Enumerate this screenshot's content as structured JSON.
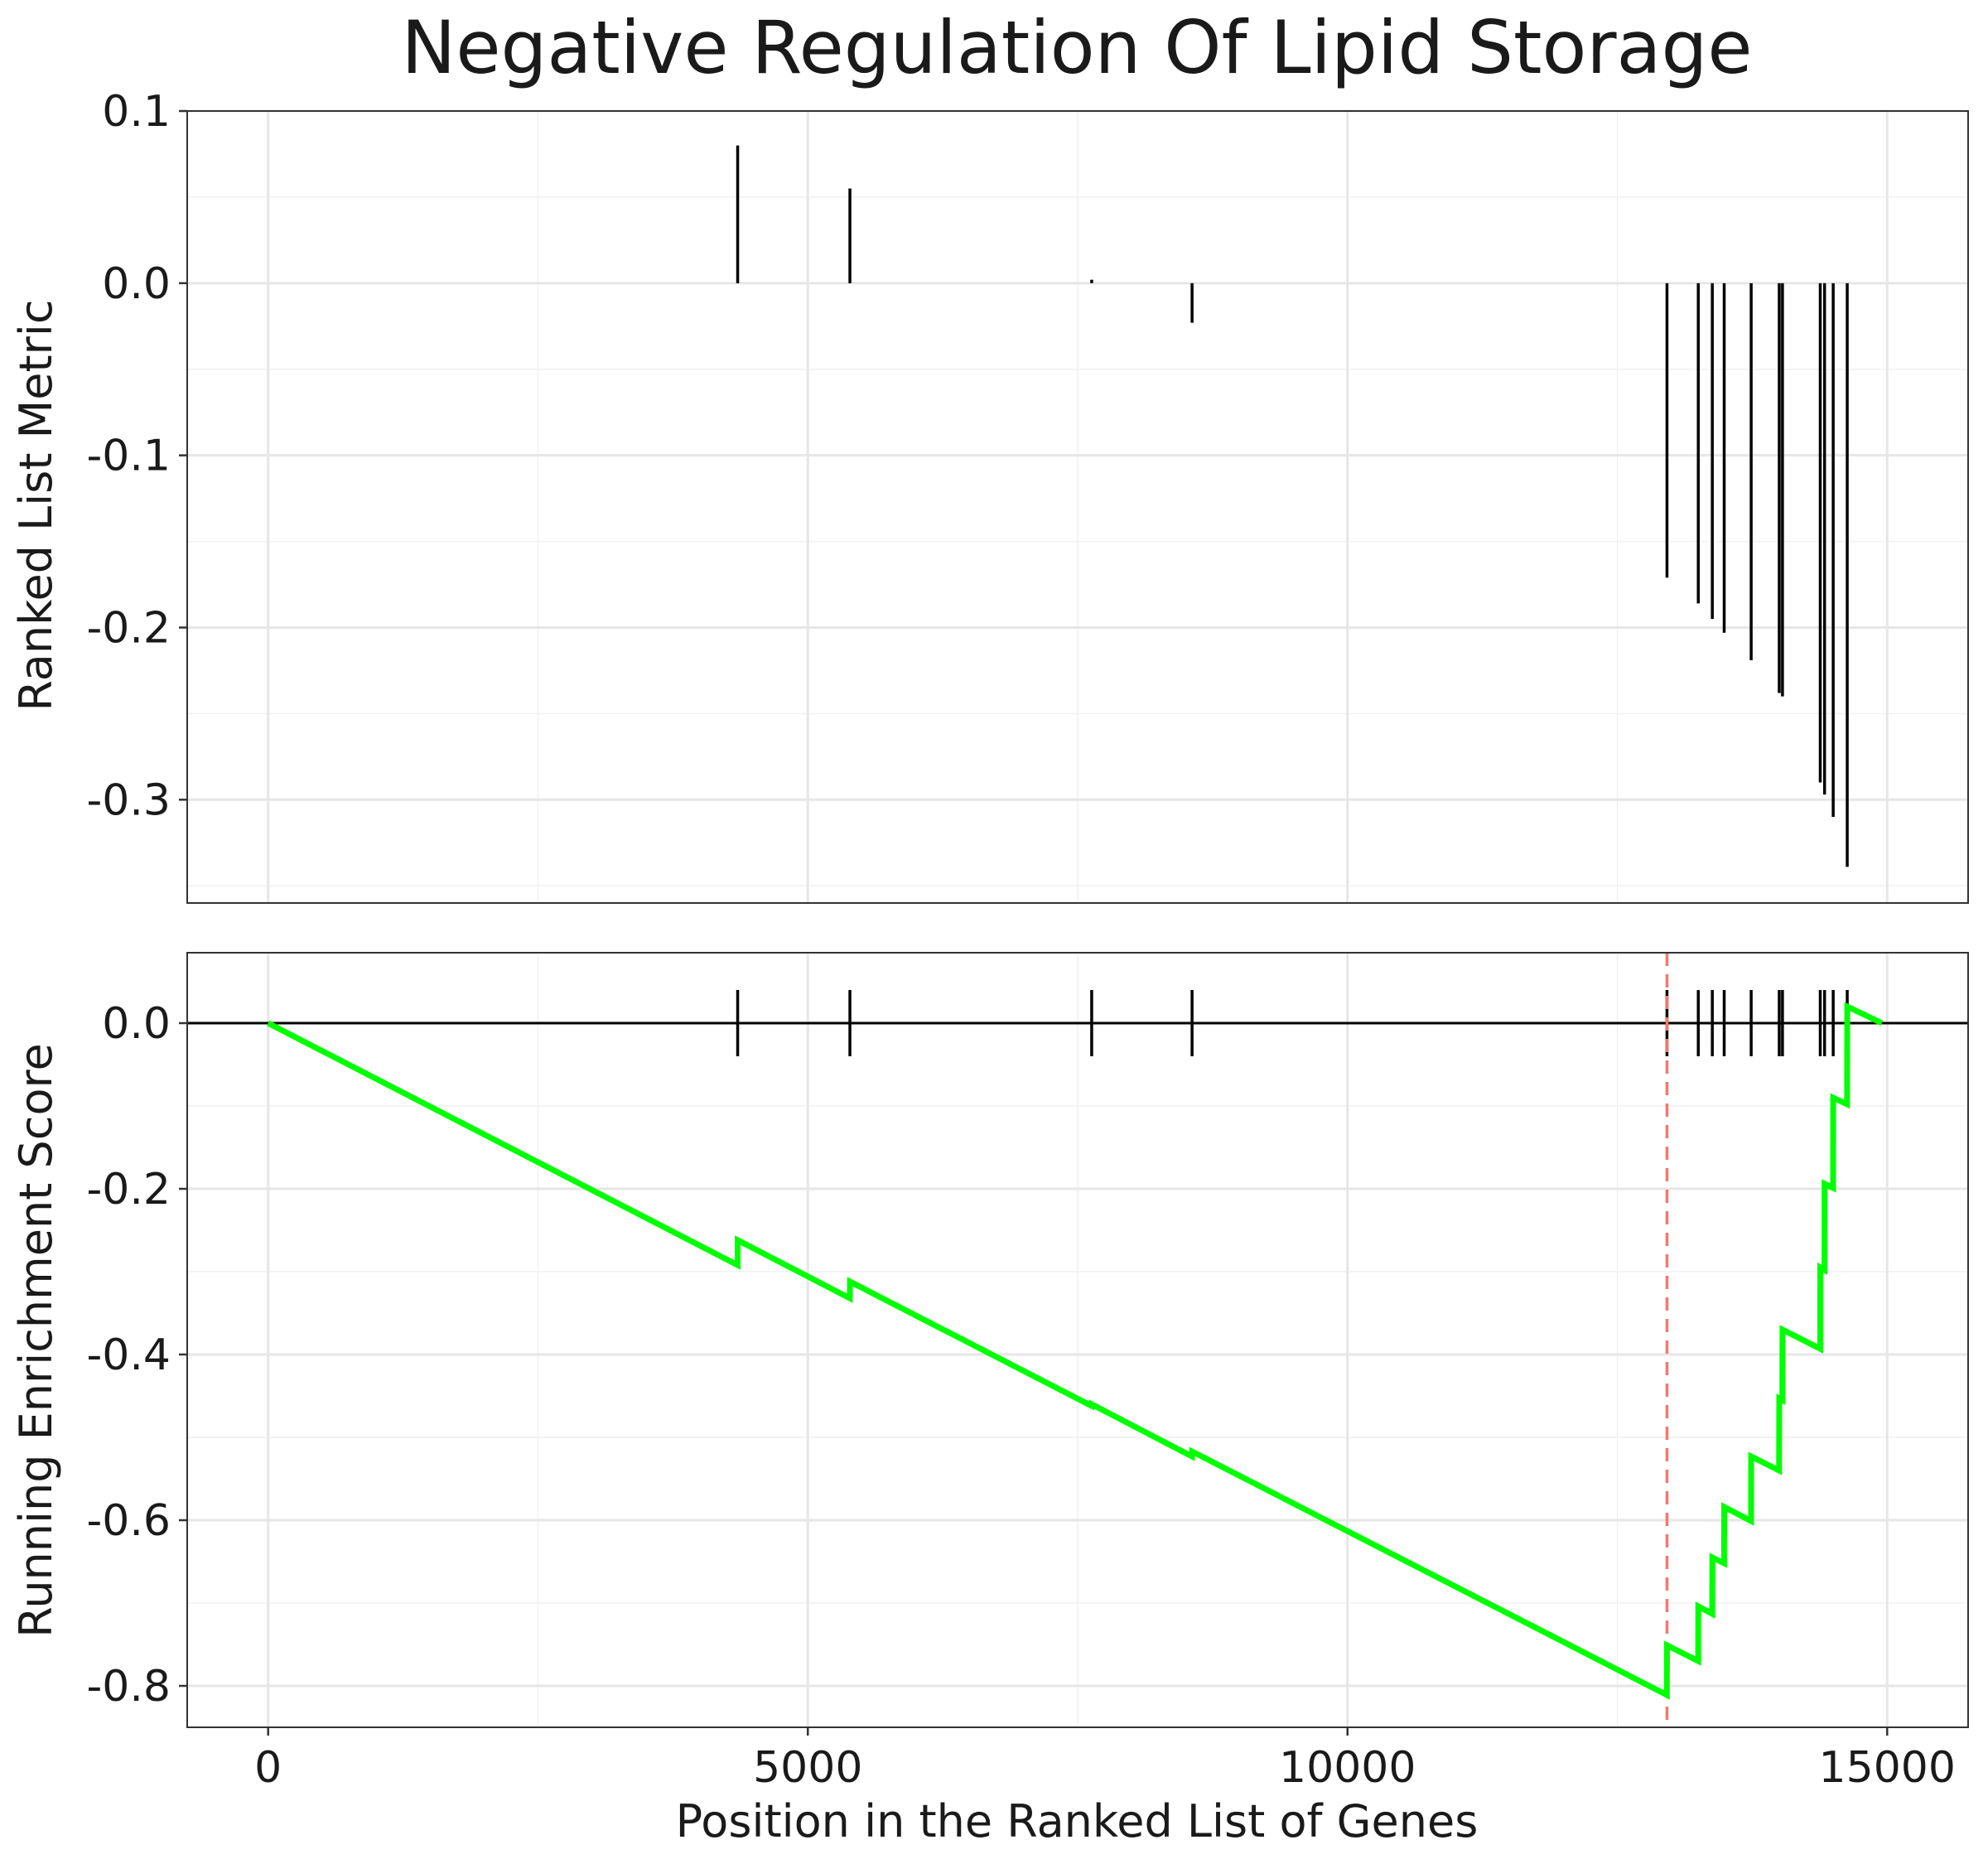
{
  "chart_data": {
    "type": "line",
    "title": "Negative Regulation Of Lipid Storage",
    "xlabel": "Position in the Ranked List of Genes",
    "xlim": [
      -750,
      15750
    ],
    "xticks": [
      "0",
      "5000",
      "10000",
      "15000"
    ],
    "xtick_values": [
      0,
      5000,
      10000,
      15000
    ],
    "grid": true,
    "colors": {
      "running_score": "#00ff00",
      "peak_line": "#f8766d",
      "bars": "#000000"
    },
    "panels": [
      {
        "name": "ranked-list-metric",
        "type": "bar",
        "ylabel": "Ranked List Metric",
        "ylim": [
          -0.36,
          0.1
        ],
        "yticks": [
          "0.1",
          "0.0",
          "-0.1",
          "-0.2",
          "-0.3"
        ],
        "ytick_values": [
          0.1,
          0.0,
          -0.1,
          -0.2,
          -0.3
        ],
        "series": [
          {
            "x": [
              4350,
              5390,
              7630,
              8560,
              12960,
              13250,
              13380,
              13490,
              13740,
              14000,
              14030,
              14380,
              14420,
              14500,
              14630
            ],
            "values": [
              0.08,
              0.055,
              0.002,
              -0.023,
              -0.171,
              -0.186,
              -0.195,
              -0.203,
              -0.219,
              -0.238,
              -0.24,
              -0.29,
              -0.297,
              -0.31,
              -0.339
            ]
          }
        ]
      },
      {
        "name": "running-enrichment-score",
        "type": "line",
        "ylabel": "Running Enrichment Score",
        "ylim": [
          -0.85,
          0.085
        ],
        "yticks": [
          "0.0",
          "-0.2",
          "-0.4",
          "-0.6",
          "-0.8"
        ],
        "ytick_values": [
          0.0,
          -0.2,
          -0.4,
          -0.6,
          -0.8
        ],
        "hits": [
          4350,
          5390,
          7630,
          8560,
          12960,
          13250,
          13380,
          13490,
          13740,
          14000,
          14030,
          14380,
          14420,
          14500,
          14630
        ],
        "peak_x": 12960,
        "series": [
          {
            "x": [
              0,
              4349,
              4350,
              5389,
              5390,
              7629,
              7630,
              8559,
              8560,
              12959,
              12960,
              13249,
              13250,
              13379,
              13380,
              13489,
              13490,
              13739,
              13740,
              13999,
              14000,
              14029,
              14030,
              14379,
              14380,
              14419,
              14420,
              14499,
              14500,
              14629,
              14630,
              14950
            ],
            "values": [
              0.0,
              -0.292,
              -0.262,
              -0.332,
              -0.312,
              -0.462,
              -0.46,
              -0.523,
              -0.517,
              -0.811,
              -0.751,
              -0.77,
              -0.704,
              -0.713,
              -0.645,
              -0.652,
              -0.584,
              -0.601,
              -0.523,
              -0.54,
              -0.453,
              -0.455,
              -0.37,
              -0.393,
              -0.295,
              -0.298,
              -0.194,
              -0.199,
              -0.09,
              -0.098,
              0.02,
              0.0
            ]
          }
        ]
      }
    ]
  }
}
